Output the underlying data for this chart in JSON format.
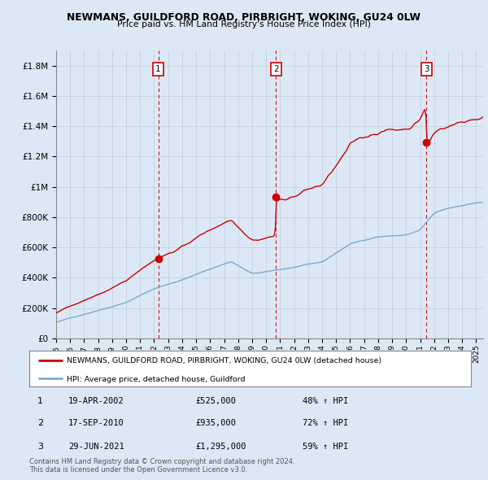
{
  "title": "NEWMANS, GUILDFORD ROAD, PIRBRIGHT, WOKING, GU24 0LW",
  "subtitle": "Price paid vs. HM Land Registry's House Price Index (HPI)",
  "ylim": [
    0,
    1900000
  ],
  "yticks": [
    0,
    200000,
    400000,
    600000,
    800000,
    1000000,
    1200000,
    1400000,
    1600000,
    1800000
  ],
  "ytick_labels": [
    "£0",
    "£200K",
    "£400K",
    "£600K",
    "£800K",
    "£1M",
    "£1.2M",
    "£1.4M",
    "£1.6M",
    "£1.8M"
  ],
  "sale_prices": [
    525000,
    935000,
    1295000
  ],
  "sale_labels": [
    "1",
    "2",
    "3"
  ],
  "sale_pct_hpi": [
    "48% ↑ HPI",
    "72% ↑ HPI",
    "59% ↑ HPI"
  ],
  "sale_date_labels": [
    "19-APR-2002",
    "17-SEP-2010",
    "29-JUN-2021"
  ],
  "sale_price_labels": [
    "£525,000",
    "£935,000",
    "£1,295,000"
  ],
  "red_line_color": "#cc0000",
  "blue_line_color": "#7aaad0",
  "vline_color": "#cc0000",
  "chart_bg_color": "#dce8f5",
  "fig_bg_color": "#dce8f5",
  "legend_line1": "NEWMANS, GUILDFORD ROAD, PIRBRIGHT, WOKING, GU24 0LW (detached house)",
  "legend_line2": "HPI: Average price, detached house, Guildford",
  "footer1": "Contains HM Land Registry data © Crown copyright and database right 2024.",
  "footer2": "This data is licensed under the Open Government Licence v3.0."
}
